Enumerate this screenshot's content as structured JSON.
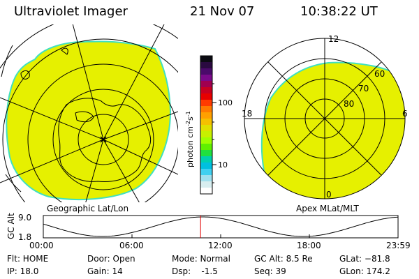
{
  "header": {
    "instrument": "Ultraviolet Imager",
    "date": "21 Nov 07",
    "time": "10:38:22 UT"
  },
  "left_panel": {
    "label": "Geographic Lat/Lon"
  },
  "right_panel": {
    "label": "Apex MLat/MLT",
    "mlt_labels": [
      "12",
      "18",
      "6",
      "0"
    ],
    "mlat_labels": [
      "60",
      "70",
      "80"
    ]
  },
  "colorbar": {
    "unit_label": "photon cm",
    "unit_sup1": "-2",
    "unit_mid": "s",
    "unit_sup2": "-1",
    "ticks": [
      "100",
      "10"
    ],
    "colors": [
      "#0b0b12",
      "#2a0a40",
      "#4a0a6a",
      "#7a0a8a",
      "#a00050",
      "#c80020",
      "#e80000",
      "#ff3a00",
      "#ff7a00",
      "#ffa000",
      "#f5c000",
      "#e0e000",
      "#c8f000",
      "#a0ff00",
      "#60f000",
      "#20e040",
      "#00d0b0",
      "#00c0e0",
      "#40d0f0",
      "#a0e0ee",
      "#d8eef0",
      "#ffffff"
    ]
  },
  "altitude_plot": {
    "ylabel": "GC Alt",
    "y_max_label": "9.0",
    "y_min_label": "1.8",
    "x_ticks": [
      "00:00",
      "06:00",
      "12:00",
      "18:00",
      "23:59"
    ],
    "current_time_hours": 10.64
  },
  "status": {
    "col1": [
      "Flt: HOME",
      "IP: 18.0"
    ],
    "col2": [
      "Door: Open",
      "Gain: 14"
    ],
    "col3": [
      "Mode: Normal",
      "Dsp:    -1.5"
    ],
    "col4": [
      "GC Alt: 8.5 Re",
      "Seq: 39"
    ],
    "col5": [
      "GLat: −81.8",
      "GLon: 174.2"
    ]
  }
}
